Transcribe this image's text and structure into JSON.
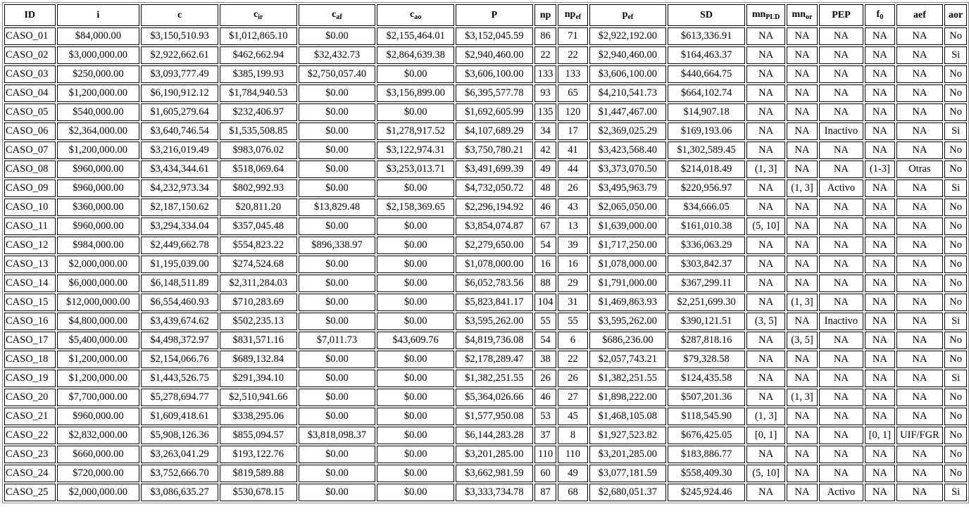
{
  "table": {
    "headers": [
      {
        "main": "ID",
        "sub": ""
      },
      {
        "main": "i",
        "sub": ""
      },
      {
        "main": "c",
        "sub": ""
      },
      {
        "main": "c",
        "sub": "ir"
      },
      {
        "main": "c",
        "sub": "af"
      },
      {
        "main": "c",
        "sub": "ao"
      },
      {
        "main": "P",
        "sub": ""
      },
      {
        "main": "np",
        "sub": ""
      },
      {
        "main": "np",
        "sub": "ef"
      },
      {
        "main": "p",
        "sub": "ef"
      },
      {
        "main": "SD",
        "sub": ""
      },
      {
        "main": "mn",
        "sub": "PLD"
      },
      {
        "main": "mn",
        "sub": "or"
      },
      {
        "main": "PEP",
        "sub": ""
      },
      {
        "main": "f",
        "sub": "0"
      },
      {
        "main": "aef",
        "sub": ""
      },
      {
        "main": "aor",
        "sub": ""
      }
    ],
    "rows": [
      [
        "CASO_01",
        "$84,000.00",
        "$3,150,510.93",
        "$1,012,865.10",
        "$0.00",
        "$2,155,464.01",
        "$3,152,045.59",
        "86",
        "71",
        "$2,922,192.00",
        "$613,336.91",
        "NA",
        "NA",
        "NA",
        "NA",
        "NA",
        "No"
      ],
      [
        "CASO_02",
        "$3,000,000.00",
        "$2,922,662.61",
        "$462,662.94",
        "$32,432.73",
        "$2,864,639.38",
        "$2,940,460.00",
        "22",
        "22",
        "$2,940,460.00",
        "$164,463.37",
        "NA",
        "NA",
        "NA",
        "NA",
        "NA",
        "Si"
      ],
      [
        "CASO_03",
        "$250,000.00",
        "$3,093,777.49",
        "$385,199.93",
        "$2,750,057.40",
        "$0.00",
        "$3,606,100.00",
        "133",
        "133",
        "$3,606,100.00",
        "$440,664.75",
        "NA",
        "NA",
        "NA",
        "NA",
        "NA",
        "No"
      ],
      [
        "CASO_04",
        "$1,200,000.00",
        "$6,190,912.12",
        "$1,784,940.53",
        "$0.00",
        "$3,156,899.00",
        "$6,395,577.78",
        "93",
        "65",
        "$4,210,541.73",
        "$664,102.74",
        "NA",
        "NA",
        "NA",
        "NA",
        "NA",
        "No"
      ],
      [
        "CASO_05",
        "$540,000.00",
        "$1,605,279.64",
        "$232,406.97",
        "$0.00",
        "$0.00",
        "$1,692,605.99",
        "135",
        "120",
        "$1,447,467.00",
        "$14,907.18",
        "NA",
        "NA",
        "NA",
        "NA",
        "NA",
        "No"
      ],
      [
        "CASO_06",
        "$2,364,000.00",
        "$3,640,746.54",
        "$1,535,508.85",
        "$0.00",
        "$1,278,917.52",
        "$4,107,689.29",
        "34",
        "17",
        "$2,369,025.29",
        "$169,193.06",
        "NA",
        "NA",
        "Inactivo",
        "NA",
        "NA",
        "Si"
      ],
      [
        "CASO_07",
        "$1,200,000.00",
        "$3,216,019.49",
        "$983,076.02",
        "$0.00",
        "$3,122,974.31",
        "$3,750,780.21",
        "42",
        "41",
        "$3,423,568.40",
        "$1,302,589.45",
        "NA",
        "NA",
        "NA",
        "NA",
        "NA",
        "No"
      ],
      [
        "CASO_08",
        "$960,000.00",
        "$3,434,344.61",
        "$518,069.64",
        "$0.00",
        "$3,253,013.71",
        "$3,491,699.39",
        "49",
        "44",
        "$3,373,070.50",
        "$214,018.49",
        "(1, 3]",
        "NA",
        "NA",
        "(1-3]",
        "Otras",
        "No"
      ],
      [
        "CASO_09",
        "$960,000.00",
        "$4,232,973.34",
        "$802,992.93",
        "$0.00",
        "$0.00",
        "$4,732,050.72",
        "48",
        "26",
        "$3,495,963.79",
        "$220,956.97",
        "NA",
        "(1, 3]",
        "Activo",
        "NA",
        "NA",
        "Si"
      ],
      [
        "CASO_10",
        "$360,000.00",
        "$2,187,150.62",
        "$20,811.20",
        "$13,829.48",
        "$2,158,369.65",
        "$2,296,194.92",
        "46",
        "43",
        "$2,065,050.00",
        "$34,666.05",
        "NA",
        "NA",
        "NA",
        "NA",
        "NA",
        "No"
      ],
      [
        "CASO_11",
        "$960,000.00",
        "$3,294,334.04",
        "$357,045.48",
        "$0.00",
        "$0.00",
        "$3,854,074.87",
        "67",
        "13",
        "$1,639,000.00",
        "$161,010.38",
        "(5, 10]",
        "NA",
        "NA",
        "NA",
        "NA",
        "No"
      ],
      [
        "CASO_12",
        "$984,000.00",
        "$2,449,662.78",
        "$554,823.22",
        "$896,338.97",
        "$0.00",
        "$2,279,650.00",
        "54",
        "39",
        "$1,717,250.00",
        "$336,063.29",
        "NA",
        "NA",
        "NA",
        "NA",
        "NA",
        "No"
      ],
      [
        "CASO_13",
        "$2,000,000.00",
        "$1,195,039.00",
        "$274,524.68",
        "$0.00",
        "$0.00",
        "$1,078,000.00",
        "16",
        "16",
        "$1,078,000.00",
        "$303,842.37",
        "NA",
        "NA",
        "NA",
        "NA",
        "NA",
        "No"
      ],
      [
        "CASO_14",
        "$6,000,000.00",
        "$6,148,511.89",
        "$2,311,284.03",
        "$0.00",
        "$0.00",
        "$6,052,783.56",
        "88",
        "29",
        "$1,791,000.00",
        "$367,299.11",
        "NA",
        "NA",
        "NA",
        "NA",
        "NA",
        "No"
      ],
      [
        "CASO_15",
        "$12,000,000.00",
        "$6,554,460.93",
        "$710,283.69",
        "$0.00",
        "$0.00",
        "$5,823,841.17",
        "104",
        "31",
        "$1,469,863.93",
        "$2,251,699.30",
        "NA",
        "(1, 3]",
        "NA",
        "NA",
        "NA",
        "No"
      ],
      [
        "CASO_16",
        "$4,800,000.00",
        "$3,439,674.62",
        "$502,235.13",
        "$0.00",
        "$0.00",
        "$3,595,262.00",
        "55",
        "55",
        "$3,595,262.00",
        "$390,121.51",
        "(3, 5]",
        "NA",
        "Inactivo",
        "NA",
        "NA",
        "Si"
      ],
      [
        "CASO_17",
        "$5,400,000.00",
        "$4,498,372.97",
        "$831,571.16",
        "$7,011.73",
        "$43,609.76",
        "$4,819,736.08",
        "54",
        "6",
        "$686,236.00",
        "$287,818.16",
        "NA",
        "(3, 5]",
        "NA",
        "NA",
        "NA",
        "No"
      ],
      [
        "CASO_18",
        "$1,200,000.00",
        "$2,154,066.76",
        "$689,132.84",
        "$0.00",
        "$0.00",
        "$2,178,289.47",
        "38",
        "22",
        "$2,057,743.21",
        "$79,328.58",
        "NA",
        "NA",
        "NA",
        "NA",
        "NA",
        "No"
      ],
      [
        "CASO_19",
        "$1,200,000.00",
        "$1,443,526.75",
        "$291,394.10",
        "$0.00",
        "$0.00",
        "$1,382,251.55",
        "26",
        "26",
        "$1,382,251.55",
        "$124,435.58",
        "NA",
        "NA",
        "NA",
        "NA",
        "NA",
        "Si"
      ],
      [
        "CASO_20",
        "$7,700,000.00",
        "$5,278,694.77",
        "$2,510,941.66",
        "$0.00",
        "$0.00",
        "$5,364,026.66",
        "46",
        "27",
        "$1,898,222.00",
        "$507,201.36",
        "NA",
        "(1, 3]",
        "NA",
        "NA",
        "NA",
        "No"
      ],
      [
        "CASO_21",
        "$960,000.00",
        "$1,609,418.61",
        "$338,295.06",
        "$0.00",
        "$0.00",
        "$1,577,950.08",
        "53",
        "45",
        "$1,468,105.08",
        "$118,545.90",
        "(1, 3]",
        "NA",
        "NA",
        "NA",
        "NA",
        "No"
      ],
      [
        "CASO_22",
        "$2,832,000.00",
        "$5,908,126.36",
        "$855,094.57",
        "$3,818,098.37",
        "$0.00",
        "$6,144,283.28",
        "37",
        "8",
        "$1,927,523.82",
        "$676,425.05",
        "[0, 1]",
        "NA",
        "NA",
        "[0, 1]",
        "UIF/FGR",
        "No"
      ],
      [
        "CASO_23",
        "$660,000.00",
        "$3,263,041.29",
        "$193,122.76",
        "$0.00",
        "$0.00",
        "$3,201,285.00",
        "110",
        "110",
        "$3,201,285.00",
        "$183,886.77",
        "NA",
        "NA",
        "NA",
        "NA",
        "NA",
        "No"
      ],
      [
        "CASO_24",
        "$720,000.00",
        "$3,752,666.70",
        "$819,589.88",
        "$0.00",
        "$0.00",
        "$3,662,981.59",
        "60",
        "49",
        "$3,077,181.59",
        "$558,409.30",
        "(5, 10]",
        "NA",
        "NA",
        "NA",
        "NA",
        "No"
      ],
      [
        "CASO_25",
        "$2,000,000.00",
        "$3,086,635.27",
        "$530,678.15",
        "$0.00",
        "$0.00",
        "$3,333,734.78",
        "87",
        "68",
        "$2,680,051.37",
        "$245,924.46",
        "NA",
        "NA",
        "Activo",
        "NA",
        "NA",
        "Si"
      ]
    ]
  }
}
